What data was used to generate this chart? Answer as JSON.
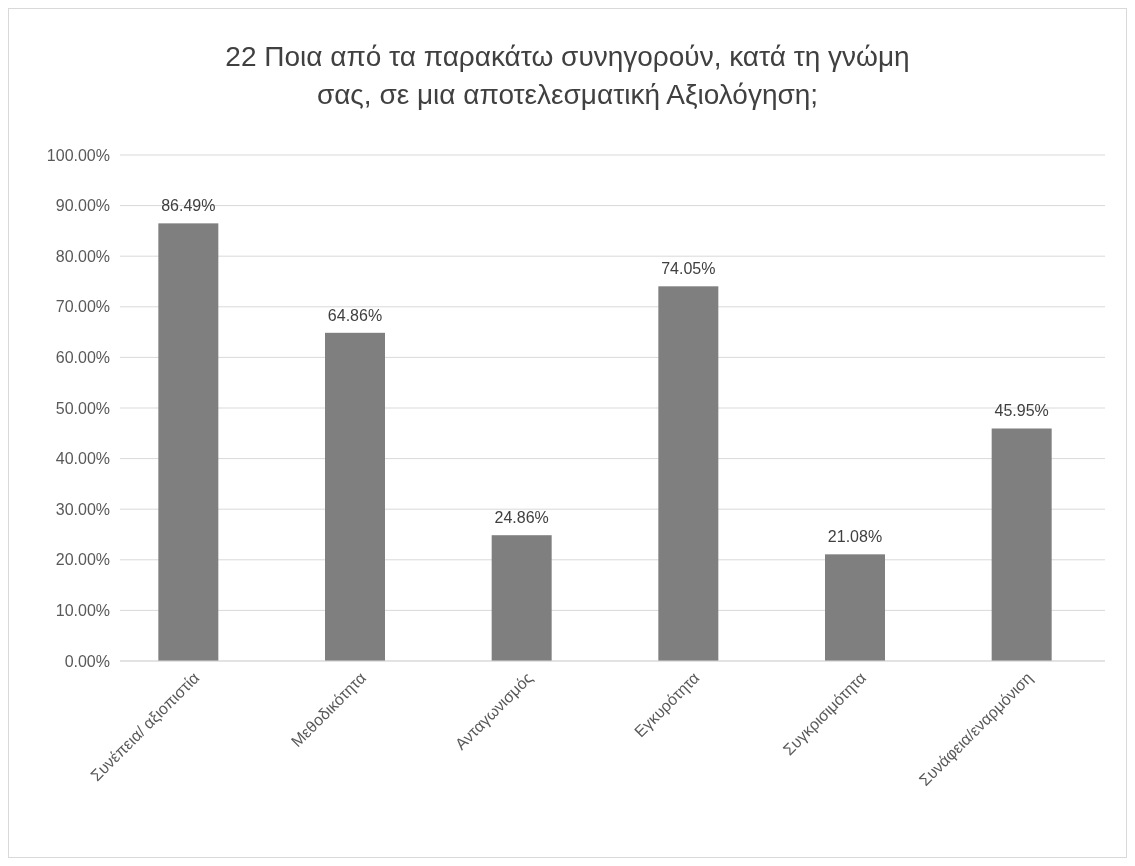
{
  "chart_data": {
    "type": "bar",
    "title": "22 Ποια από τα παρακάτω συνηγορούν, κατά τη γνώμη σας, σε μια αποτελεσματική Αξιολόγηση;",
    "categories": [
      "Συνέπεια/ αξιοπιστία",
      "Μεθοδικότητα",
      "Ανταγωνισμός",
      "Εγκυρότητα",
      "Συγκρισιμότητα",
      "Συνάφεια/εναρμόνιση"
    ],
    "values": [
      86.49,
      64.86,
      24.86,
      74.05,
      21.08,
      45.95
    ],
    "value_labels": [
      "86.49%",
      "64.86%",
      "24.86%",
      "74.05%",
      "21.08%",
      "45.95%"
    ],
    "color": "#7f7f7f",
    "ylim": [
      0,
      100
    ],
    "yticks": [
      {
        "value": 0,
        "label": "0.00%"
      },
      {
        "value": 10,
        "label": "10.00%"
      },
      {
        "value": 20,
        "label": "20.00%"
      },
      {
        "value": 30,
        "label": "30.00%"
      },
      {
        "value": 40,
        "label": "40.00%"
      },
      {
        "value": 50,
        "label": "50.00%"
      },
      {
        "value": 60,
        "label": "60.00%"
      },
      {
        "value": 70,
        "label": "70.00%"
      },
      {
        "value": 80,
        "label": "80.00%"
      },
      {
        "value": 90,
        "label": "90.00%"
      },
      {
        "value": 100,
        "label": "100.00%"
      }
    ],
    "grid": "y"
  }
}
